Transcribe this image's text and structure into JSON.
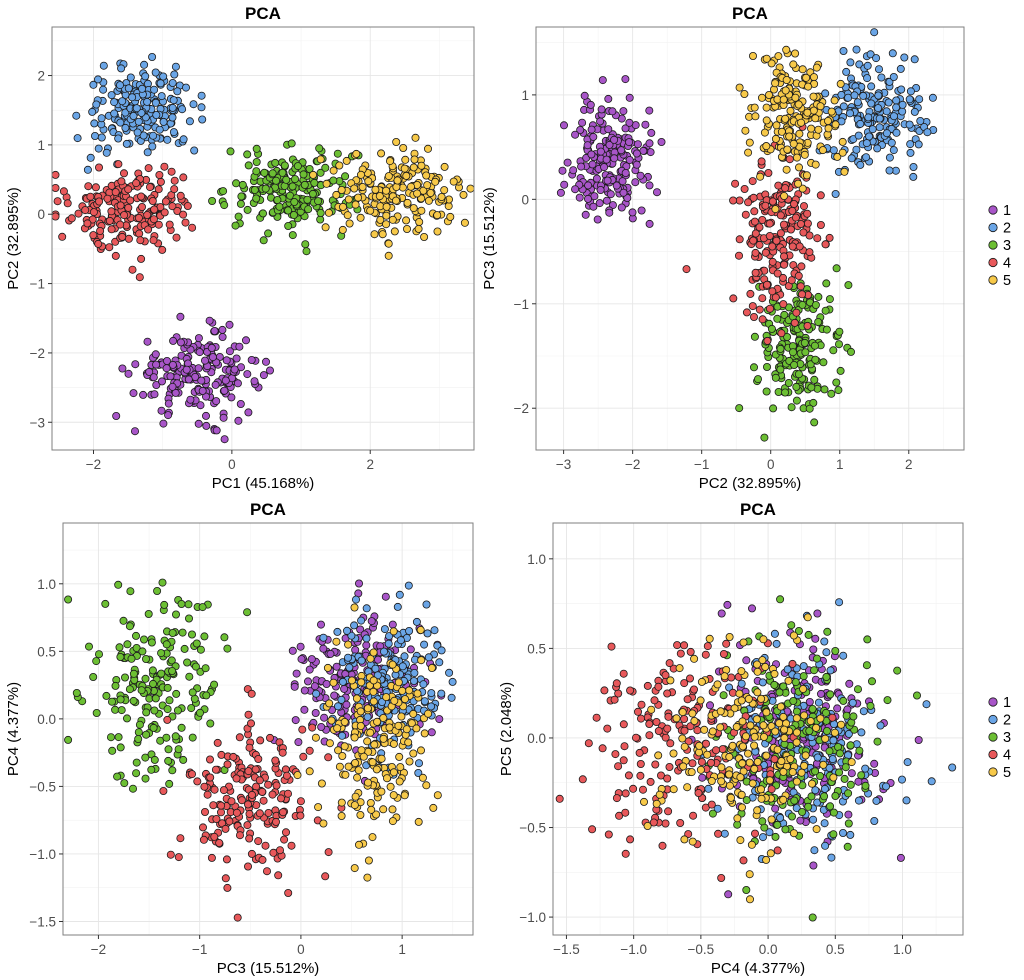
{
  "chart_data": [
    {
      "type": "scatter",
      "title": "PCA",
      "xlabel": "PC1 (45.168%)",
      "ylabel": "PC2 (32.895%)",
      "xlim": [
        -2.6,
        3.5
      ],
      "ylim": [
        -3.4,
        2.7
      ],
      "xticks": [
        -2,
        0,
        2
      ],
      "yticks": [
        -3,
        -2,
        -1,
        0,
        1,
        2
      ],
      "grid": true,
      "legend": "none",
      "clusters": [
        {
          "series": "1",
          "center": [
            -0.5,
            -2.3
          ],
          "spread": [
            0.45,
            0.3
          ],
          "n": 200
        },
        {
          "series": "2",
          "center": [
            -1.3,
            1.5
          ],
          "spread": [
            0.4,
            0.3
          ],
          "n": 200
        },
        {
          "series": "3",
          "center": [
            0.85,
            0.35
          ],
          "spread": [
            0.45,
            0.3
          ],
          "n": 200
        },
        {
          "series": "4",
          "center": [
            -1.45,
            0.1
          ],
          "spread": [
            0.45,
            0.3
          ],
          "n": 200
        },
        {
          "series": "5",
          "center": [
            2.4,
            0.3
          ],
          "spread": [
            0.45,
            0.3
          ],
          "n": 200
        }
      ]
    },
    {
      "type": "scatter",
      "title": "PCA",
      "xlabel": "PC2 (32.895%)",
      "ylabel": "PC3 (15.512%)",
      "xlim": [
        -3.4,
        2.8
      ],
      "ylim": [
        -2.4,
        1.65
      ],
      "xticks": [
        -3,
        -2,
        -1,
        0,
        1,
        2
      ],
      "yticks": [
        -2,
        -1,
        0,
        1
      ],
      "grid": true,
      "legend": "right",
      "clusters": [
        {
          "series": "1",
          "center": [
            -2.3,
            0.35
          ],
          "spread": [
            0.3,
            0.3
          ],
          "n": 200
        },
        {
          "series": "2",
          "center": [
            1.5,
            0.8
          ],
          "spread": [
            0.35,
            0.28
          ],
          "n": 200
        },
        {
          "series": "3",
          "center": [
            0.4,
            -1.4
          ],
          "spread": [
            0.3,
            0.3
          ],
          "n": 200
        },
        {
          "series": "4",
          "center": [
            0.1,
            -0.35
          ],
          "spread": [
            0.3,
            0.35
          ],
          "n": 200
        },
        {
          "series": "5",
          "center": [
            0.3,
            0.75
          ],
          "spread": [
            0.3,
            0.3
          ],
          "n": 200
        }
      ]
    },
    {
      "type": "scatter",
      "title": "PCA",
      "xlabel": "PC3 (15.512%)",
      "ylabel": "PC4 (4.377%)",
      "xlim": [
        -2.35,
        1.7
      ],
      "ylim": [
        -1.6,
        1.45
      ],
      "xticks": [
        -2,
        -1,
        0,
        1
      ],
      "yticks": [
        -1.5,
        -1.0,
        -0.5,
        0.0,
        0.5,
        1.0
      ],
      "ytick_labels": [
        "−1.5",
        "−1.0",
        "−0.5",
        "0.0",
        "0.5",
        "1.0"
      ],
      "grid": true,
      "legend": "none",
      "clusters": [
        {
          "series": "1",
          "center": [
            0.5,
            0.25
          ],
          "spread": [
            0.3,
            0.25
          ],
          "n": 200
        },
        {
          "series": "2",
          "center": [
            0.85,
            0.25
          ],
          "spread": [
            0.3,
            0.3
          ],
          "n": 200
        },
        {
          "series": "3",
          "center": [
            -1.45,
            0.3
          ],
          "spread": [
            0.35,
            0.33
          ],
          "n": 200
        },
        {
          "series": "4",
          "center": [
            -0.5,
            -0.6
          ],
          "spread": [
            0.33,
            0.3
          ],
          "n": 200
        },
        {
          "series": "5",
          "center": [
            0.75,
            -0.2
          ],
          "spread": [
            0.3,
            0.35
          ],
          "n": 200
        }
      ]
    },
    {
      "type": "scatter",
      "title": "PCA",
      "xlabel": "PC4 (4.377%)",
      "ylabel": "PC5 (2.048%)",
      "xlim": [
        -1.6,
        1.45
      ],
      "ylim": [
        -1.1,
        1.2
      ],
      "xticks": [
        -1.5,
        -1.0,
        -0.5,
        0.0,
        0.5,
        1.0
      ],
      "xtick_labels": [
        "−1.5",
        "−1.0",
        "−0.5",
        "0.0",
        "0.5",
        "1.0"
      ],
      "yticks": [
        -1.0,
        -0.5,
        0.0,
        0.5,
        1.0
      ],
      "ytick_labels": [
        "−1.0",
        "−0.5",
        "0.0",
        "0.5",
        "1.0"
      ],
      "grid": true,
      "legend": "right",
      "clusters": [
        {
          "series": "1",
          "center": [
            0.25,
            0.0
          ],
          "spread": [
            0.3,
            0.28
          ],
          "n": 200
        },
        {
          "series": "2",
          "center": [
            0.3,
            -0.05
          ],
          "spread": [
            0.3,
            0.28
          ],
          "n": 200
        },
        {
          "series": "3",
          "center": [
            0.2,
            -0.05
          ],
          "spread": [
            0.3,
            0.3
          ],
          "n": 200
        },
        {
          "series": "4",
          "center": [
            -0.6,
            -0.05
          ],
          "spread": [
            0.35,
            0.3
          ],
          "n": 200
        },
        {
          "series": "5",
          "center": [
            -0.15,
            0.0
          ],
          "spread": [
            0.33,
            0.28
          ],
          "n": 200
        }
      ]
    }
  ],
  "legend": {
    "entries": [
      {
        "label": "1",
        "color": "#a855c8"
      },
      {
        "label": "2",
        "color": "#6aa5e6"
      },
      {
        "label": "3",
        "color": "#6cbf33"
      },
      {
        "label": "4",
        "color": "#e8585a"
      },
      {
        "label": "5",
        "color": "#f7c949"
      }
    ]
  },
  "colors": {
    "point_stroke": "#1a1a1a",
    "grid": "#e6e6e6",
    "panel_border": "#7f7f7f"
  }
}
